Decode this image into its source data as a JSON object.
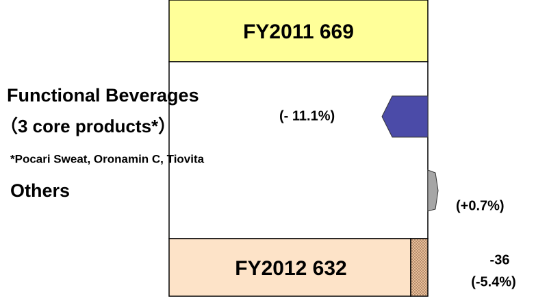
{
  "top_box": {
    "label": "FY2011 669"
  },
  "bottom_box": {
    "label": "FY2012 632"
  },
  "segments": [
    {
      "name": "Functional Beverages",
      "subname": "（3 core products*）",
      "change": "(- 11.1%)"
    },
    {
      "name": "Others",
      "change": "(+0.7%)"
    }
  ],
  "footnote": "*Pocari Sweat, Oronamin C, Tiovita",
  "total_change": {
    "amount": "-36",
    "percent": "(-5.4%)"
  }
}
